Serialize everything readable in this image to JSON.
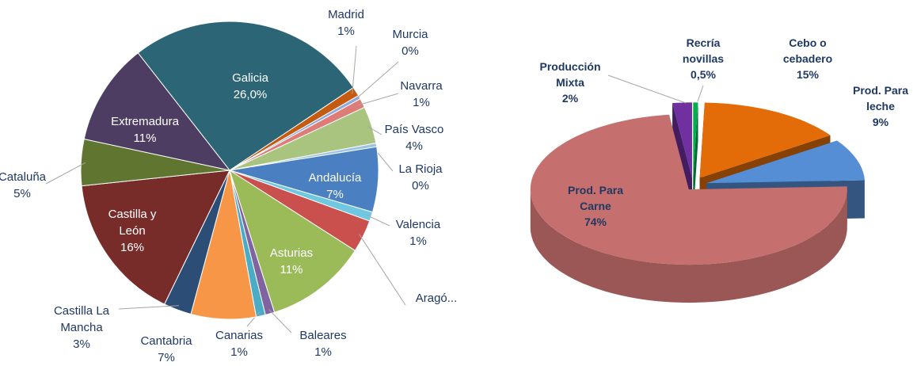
{
  "chart_data": [
    {
      "type": "pie",
      "categories": [
        "Galicia",
        "Madrid",
        "Murcia",
        "Navarra",
        "País Vasco",
        "La Rioja",
        "Andalucía",
        "Valencia",
        "Aragó...",
        "Asturias",
        "Baleares",
        "Canarias",
        "Cantabria",
        "Castilla La Mancha",
        "Castilla y León",
        "Cataluña",
        "Extremadura"
      ],
      "values": [
        26,
        1,
        0.4,
        1,
        4,
        0.4,
        7,
        1,
        3.5,
        11,
        1,
        1,
        7,
        3,
        16,
        5,
        11
      ],
      "value_labels": [
        "26,0%",
        "1%",
        "0%",
        "1%",
        "4%",
        "0%",
        "7%",
        "1%",
        null,
        "11%",
        "1%",
        "1%",
        "7%",
        "3%",
        "16%",
        "5%",
        "11%"
      ],
      "colors": [
        "#2b6576",
        "#c55a11",
        "#8ea9db",
        "#de7c7a",
        "#a9c47e",
        "#9dc3e6",
        "#4a7fc1",
        "#6fc7e0",
        "#c9504d",
        "#9bbb59",
        "#8064a2",
        "#4bacc6",
        "#f79646",
        "#2c4d75",
        "#772c2a",
        "#5f7530",
        "#4e3d63"
      ]
    },
    {
      "type": "pie",
      "three_d": true,
      "categories": [
        "Recría novillas",
        "Cebo o cebadero",
        "Prod. Para leche",
        "Prod. Para Carne",
        "Producción Mixta"
      ],
      "values": [
        0.5,
        15,
        9,
        74,
        2
      ],
      "value_labels": [
        "0,5%",
        "15%",
        "9%",
        "74%",
        "2%"
      ],
      "colors": [
        "#00b050",
        "#e36c09",
        "#558ed5",
        "#c5706e",
        "#7030a0"
      ]
    }
  ]
}
